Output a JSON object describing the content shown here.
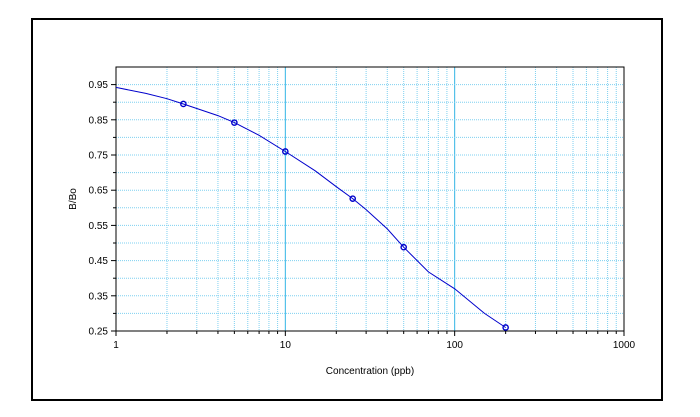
{
  "chart_data": {
    "type": "scatter",
    "title": "",
    "xlabel": "Concentration (ppb)",
    "ylabel": "B/Bo",
    "x_scale": "log",
    "xlim": [
      1,
      1000
    ],
    "ylim": [
      0.25,
      1.0
    ],
    "x_ticks": [
      "1",
      "10",
      "100",
      "1000"
    ],
    "y_ticks": [
      "0.25",
      "0.35",
      "0.45",
      "0.55",
      "0.65",
      "0.75",
      "0.85",
      "0.95"
    ],
    "grid": true,
    "legend": "none",
    "colors": {
      "series": "#0000cc",
      "grid_major": "#33b5e5",
      "grid_minor": "#7fd0f0",
      "axis": "#000000"
    },
    "series": [
      {
        "x": [
          2.5,
          5,
          10,
          25,
          50,
          200
        ],
        "y": [
          0.895,
          0.842,
          0.76,
          0.626,
          0.488,
          0.26
        ]
      }
    ],
    "fit_curve": {
      "x": [
        1,
        1.5,
        2,
        2.5,
        3,
        4,
        5,
        7,
        10,
        15,
        20,
        25,
        30,
        40,
        50,
        70,
        100,
        150,
        200
      ],
      "y": [
        0.942,
        0.925,
        0.91,
        0.895,
        0.882,
        0.862,
        0.842,
        0.806,
        0.76,
        0.705,
        0.66,
        0.626,
        0.595,
        0.54,
        0.488,
        0.418,
        0.37,
        0.3,
        0.26
      ]
    }
  }
}
